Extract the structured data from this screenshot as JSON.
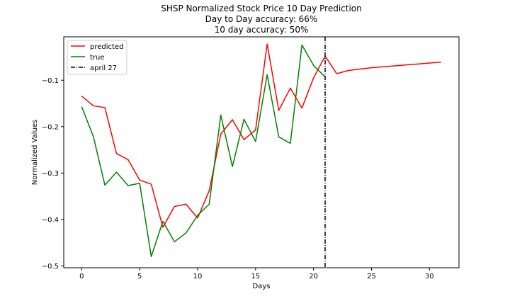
{
  "chart_data": {
    "type": "line",
    "title_lines": [
      "SHSP Normalized Stock Price 10 Day Prediction",
      "Day to Day accuracy: 66%",
      "10 day accuracy: 50%"
    ],
    "xlabel": "Days",
    "ylabel": "Normalized Values",
    "xlim": [
      -1.55,
      32.55
    ],
    "ylim": [
      -0.504,
      -0.0065
    ],
    "xticks": [
      0,
      5,
      10,
      15,
      20,
      25,
      30
    ],
    "yticks": [
      -0.5,
      -0.4,
      -0.3,
      -0.2,
      -0.1
    ],
    "ytick_labels": [
      "−0.5",
      "−0.4",
      "−0.3",
      "−0.2",
      "−0.1"
    ],
    "grid": false,
    "legend_position": "top-left",
    "series": [
      {
        "name": "predicted",
        "color": "#ff0000",
        "x": [
          0,
          1,
          2,
          3,
          4,
          5,
          6,
          7,
          8,
          9,
          10,
          11,
          12,
          13,
          14,
          15,
          16,
          17,
          18,
          19,
          20,
          21,
          22,
          23,
          24,
          25,
          26,
          27,
          28,
          29,
          30,
          31
        ],
        "y": [
          -0.134,
          -0.155,
          -0.159,
          -0.258,
          -0.271,
          -0.315,
          -0.324,
          -0.417,
          -0.372,
          -0.367,
          -0.397,
          -0.338,
          -0.216,
          -0.185,
          -0.228,
          -0.207,
          -0.022,
          -0.165,
          -0.117,
          -0.16,
          -0.095,
          -0.048,
          -0.086,
          -0.079,
          -0.076,
          -0.073,
          -0.071,
          -0.069,
          -0.067,
          -0.065,
          -0.063,
          -0.061
        ]
      },
      {
        "name": "true",
        "color": "#008000",
        "x": [
          0,
          1,
          2,
          3,
          4,
          5,
          6,
          7,
          8,
          9,
          10,
          11,
          12,
          13,
          14,
          15,
          16,
          17,
          18,
          19,
          20,
          21
        ],
        "y": [
          -0.157,
          -0.221,
          -0.326,
          -0.298,
          -0.327,
          -0.322,
          -0.48,
          -0.404,
          -0.448,
          -0.429,
          -0.391,
          -0.367,
          -0.175,
          -0.286,
          -0.184,
          -0.232,
          -0.088,
          -0.222,
          -0.236,
          -0.024,
          -0.068,
          -0.093
        ]
      }
    ],
    "vline": {
      "name": "april 27",
      "x": 21,
      "color": "#000000",
      "style": "dash-dot"
    }
  }
}
